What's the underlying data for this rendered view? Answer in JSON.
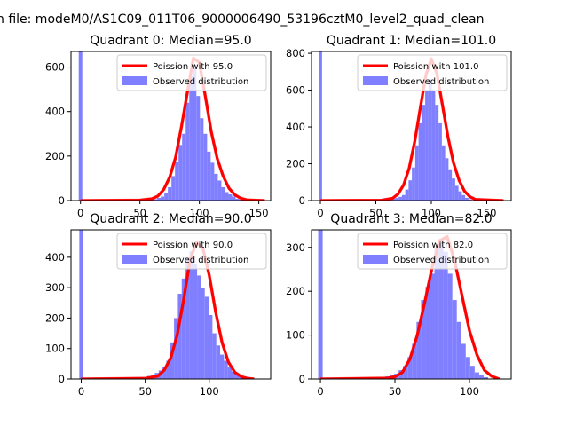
{
  "figure": {
    "suptitle": "n file: modeM0/AS1C09_011T06_9000006490_53196cztM0_level2_quad_clean"
  },
  "colors": {
    "hist": "#7f7fff",
    "poisson": "#ff0000",
    "legend_border": "#cccccc",
    "axes": "#000000"
  },
  "chart_data": [
    {
      "type": "bar",
      "title": "Quadrant 0: Median=95.0",
      "median": 95.0,
      "xlim": [
        -8,
        160
      ],
      "ylim": [
        0,
        670
      ],
      "xticks": [
        0,
        50,
        100,
        150
      ],
      "yticks": [
        0,
        200,
        400,
        600
      ],
      "legend": [
        "Poission with 95.0",
        "Observed distribution"
      ],
      "legend_position": "top-right",
      "bin_width": 3,
      "spike": {
        "x": 0,
        "height": 670
      },
      "hist_x": [
        60,
        63,
        66,
        69,
        72,
        75,
        78,
        81,
        84,
        87,
        90,
        93,
        96,
        99,
        102,
        105,
        108,
        111,
        114,
        117,
        120,
        123,
        126,
        129,
        132,
        135
      ],
      "hist_y": [
        8,
        6,
        12,
        18,
        34,
        60,
        110,
        175,
        250,
        300,
        440,
        560,
        600,
        470,
        370,
        300,
        220,
        170,
        120,
        90,
        60,
        38,
        28,
        18,
        8,
        4
      ],
      "poisson_x": [
        0,
        50,
        60,
        65,
        70,
        75,
        80,
        85,
        90,
        95,
        100,
        105,
        110,
        115,
        120,
        125,
        130,
        135,
        140,
        155
      ],
      "poisson_y": [
        0,
        2,
        8,
        20,
        50,
        105,
        195,
        335,
        490,
        640,
        620,
        470,
        310,
        190,
        110,
        55,
        25,
        10,
        3,
        0
      ]
    },
    {
      "type": "bar",
      "title": "Quadrant 1: Median=101.0",
      "median": 101.0,
      "xlim": [
        -8,
        172
      ],
      "ylim": [
        0,
        810
      ],
      "xticks": [
        0,
        50,
        100,
        150
      ],
      "yticks": [
        0,
        200,
        400,
        600,
        800
      ],
      "legend": [
        "Poission with 101.0",
        "Observed distribution"
      ],
      "legend_position": "top-right",
      "bin_width": 3,
      "spike": {
        "x": 0,
        "height": 810
      },
      "hist_x": [
        66,
        69,
        72,
        75,
        78,
        81,
        84,
        87,
        90,
        93,
        96,
        99,
        102,
        105,
        108,
        111,
        114,
        117,
        120,
        123,
        126,
        129,
        132,
        135
      ],
      "hist_y": [
        10,
        14,
        20,
        30,
        60,
        110,
        180,
        300,
        420,
        520,
        600,
        660,
        600,
        520,
        420,
        300,
        230,
        170,
        120,
        80,
        50,
        30,
        15,
        6
      ],
      "poisson_x": [
        0,
        55,
        65,
        70,
        75,
        80,
        85,
        90,
        95,
        100,
        105,
        110,
        115,
        120,
        125,
        130,
        135,
        140,
        165
      ],
      "poisson_y": [
        0,
        2,
        12,
        35,
        85,
        175,
        320,
        500,
        680,
        770,
        690,
        520,
        345,
        205,
        110,
        50,
        20,
        6,
        0
      ]
    },
    {
      "type": "bar",
      "title": "Quadrant 2: Median=90.0",
      "median": 90.0,
      "xlim": [
        -8,
        148
      ],
      "ylim": [
        0,
        490
      ],
      "xticks": [
        0,
        50,
        100
      ],
      "yticks": [
        0,
        100,
        200,
        300,
        400
      ],
      "legend": [
        "Poission with 90.0",
        "Observed distribution"
      ],
      "legend_position": "top-right",
      "bin_width": 3,
      "spike": {
        "x": 0,
        "height": 490
      },
      "hist_x": [
        50,
        53,
        56,
        59,
        62,
        65,
        68,
        71,
        74,
        77,
        80,
        83,
        86,
        89,
        92,
        95,
        98,
        101,
        104,
        107,
        110,
        113,
        116,
        119,
        122,
        125
      ],
      "hist_y": [
        4,
        10,
        12,
        20,
        28,
        40,
        60,
        120,
        200,
        280,
        330,
        400,
        420,
        380,
        340,
        300,
        270,
        210,
        150,
        110,
        80,
        60,
        40,
        25,
        12,
        6
      ],
      "poisson_x": [
        0,
        50,
        60,
        65,
        70,
        75,
        80,
        85,
        90,
        95,
        100,
        105,
        110,
        115,
        120,
        125,
        130,
        135
      ],
      "poisson_y": [
        0,
        2,
        10,
        30,
        70,
        145,
        260,
        390,
        450,
        430,
        340,
        220,
        120,
        55,
        22,
        8,
        2,
        0
      ]
    },
    {
      "type": "bar",
      "title": "Quadrant 3: Median=82.0",
      "median": 82.0,
      "xlim": [
        -6,
        128
      ],
      "ylim": [
        0,
        340
      ],
      "xticks": [
        0,
        50,
        100
      ],
      "yticks": [
        0,
        100,
        200,
        300
      ],
      "legend": [
        "Poission with 82.0",
        "Observed distribution"
      ],
      "legend_position": "top-right",
      "bin_width": 3,
      "spike": {
        "x": 0,
        "height": 340
      },
      "hist_x": [
        42,
        45,
        48,
        51,
        54,
        57,
        60,
        63,
        66,
        69,
        72,
        75,
        78,
        81,
        84,
        87,
        90,
        93,
        96,
        99,
        102,
        105,
        108,
        111
      ],
      "hist_y": [
        4,
        6,
        8,
        12,
        20,
        30,
        50,
        80,
        130,
        180,
        210,
        240,
        300,
        320,
        290,
        240,
        180,
        130,
        80,
        50,
        30,
        15,
        8,
        4
      ],
      "poisson_x": [
        0,
        45,
        50,
        55,
        60,
        65,
        70,
        75,
        80,
        85,
        90,
        95,
        100,
        105,
        110,
        115,
        120
      ],
      "poisson_y": [
        0,
        2,
        5,
        15,
        45,
        100,
        175,
        255,
        315,
        325,
        270,
        190,
        110,
        55,
        20,
        6,
        0
      ]
    }
  ]
}
